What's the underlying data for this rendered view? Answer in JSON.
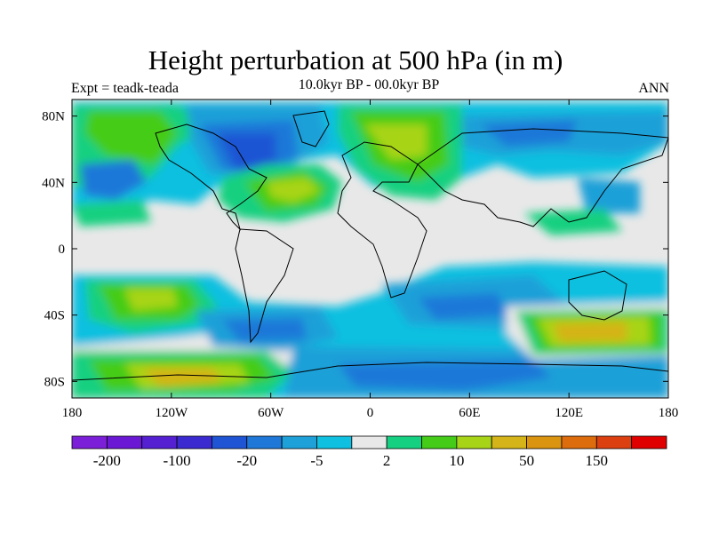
{
  "title": "Height perturbation at 500 hPa (in m)",
  "left_label": "Expt = teadk-teada",
  "center_label": "10.0kyr BP - 00.0kyr BP",
  "right_label": "ANN",
  "map": {
    "type": "filled-contour-map",
    "lon_range": [
      -180,
      180
    ],
    "lat_range": [
      -90,
      90
    ],
    "lat_ticks": [
      {
        "value": 80,
        "label": "80N"
      },
      {
        "value": 40,
        "label": "40N"
      },
      {
        "value": 0,
        "label": "0"
      },
      {
        "value": -40,
        "label": "40S"
      },
      {
        "value": -80,
        "label": "80S"
      }
    ],
    "lon_ticks": [
      {
        "value": -180,
        "label": "180"
      },
      {
        "value": -120,
        "label": "120W"
      },
      {
        "value": -60,
        "label": "60W"
      },
      {
        "value": 0,
        "label": "0"
      },
      {
        "value": 60,
        "label": "60E"
      },
      {
        "value": 120,
        "label": "120E"
      },
      {
        "value": 180,
        "label": "180"
      }
    ],
    "background_color": "#e8e8e8"
  },
  "colorbar": {
    "colors": [
      "#7b1fd8",
      "#6a18d4",
      "#5420d2",
      "#3a2ad0",
      "#1f55d4",
      "#1f78d8",
      "#1ea0d8",
      "#10c0e0",
      "#e8e8e8",
      "#15d080",
      "#44cc18",
      "#a8d418",
      "#d4b418",
      "#da9410",
      "#dc6c0c",
      "#dc4010",
      "#e00000"
    ],
    "labels": [
      {
        "boundary": 1,
        "text": "-200"
      },
      {
        "boundary": 3,
        "text": "-100"
      },
      {
        "boundary": 5,
        "text": "-20"
      },
      {
        "boundary": 7,
        "text": "-5"
      },
      {
        "boundary": 9,
        "text": "2"
      },
      {
        "boundary": 11,
        "text": "10"
      },
      {
        "boundary": 13,
        "text": "50"
      },
      {
        "boundary": 15,
        "text": "150"
      }
    ]
  }
}
